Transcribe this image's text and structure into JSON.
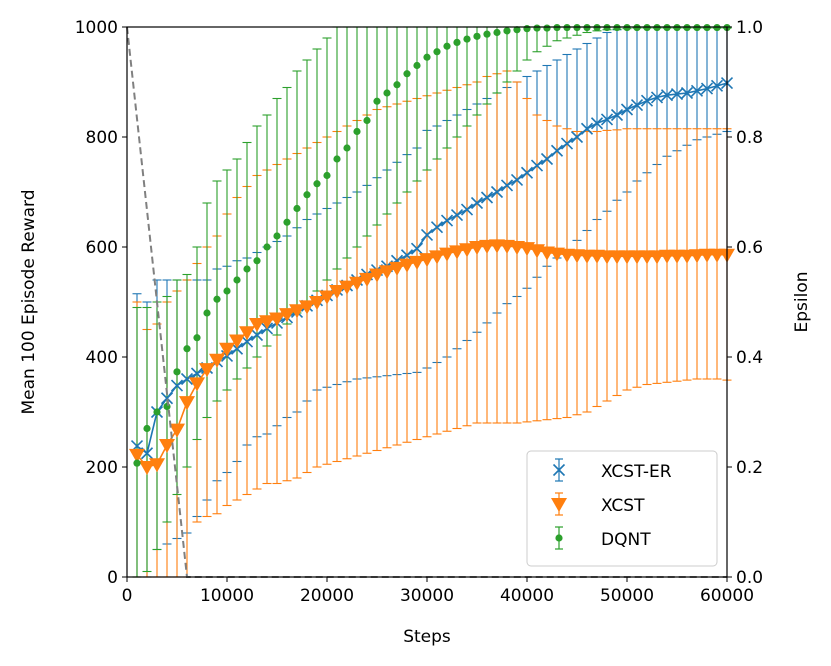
{
  "chart_data": {
    "type": "line",
    "title": "",
    "xlabel": "Steps",
    "ylabel": "Mean 100 Episode Reward",
    "y2label": "Epsilon",
    "xlim": [
      0,
      60000
    ],
    "ylim": [
      0,
      1000
    ],
    "y2lim": [
      0.0,
      1.0
    ],
    "xticks": [
      "0",
      "10000",
      "20000",
      "30000",
      "40000",
      "50000",
      "60000"
    ],
    "yticks": [
      "0",
      "200",
      "400",
      "600",
      "800",
      "1000"
    ],
    "y2ticks": [
      "0.0",
      "0.2",
      "0.4",
      "0.6",
      "0.8",
      "1.0"
    ],
    "legend_position": "bottom-right",
    "x": [
      1000,
      2000,
      3000,
      4000,
      5000,
      6000,
      7000,
      8000,
      9000,
      10000,
      11000,
      12000,
      13000,
      14000,
      15000,
      16000,
      17000,
      18000,
      19000,
      20000,
      21000,
      22000,
      23000,
      24000,
      25000,
      26000,
      27000,
      28000,
      29000,
      30000,
      31000,
      32000,
      33000,
      34000,
      35000,
      36000,
      37000,
      38000,
      39000,
      40000,
      41000,
      42000,
      43000,
      44000,
      45000,
      46000,
      47000,
      48000,
      49000,
      50000,
      51000,
      52000,
      53000,
      54000,
      55000,
      56000,
      57000,
      58000,
      59000,
      60000
    ],
    "series": [
      {
        "name": "XCST-ER",
        "color": "#1f77b4",
        "marker": "x",
        "values": [
          238,
          225,
          300,
          325,
          348,
          360,
          370,
          380,
          392,
          402,
          415,
          428,
          440,
          452,
          462,
          472,
          482,
          493,
          503,
          512,
          522,
          530,
          540,
          550,
          558,
          565,
          575,
          585,
          597,
          622,
          636,
          648,
          658,
          668,
          680,
          690,
          700,
          712,
          722,
          735,
          748,
          760,
          775,
          788,
          800,
          815,
          825,
          832,
          840,
          850,
          858,
          866,
          872,
          876,
          878,
          880,
          884,
          888,
          893,
          898
        ],
        "err_low": [
          0,
          0,
          50,
          60,
          70,
          80,
          110,
          140,
          175,
          190,
          210,
          240,
          255,
          260,
          275,
          290,
          300,
          320,
          340,
          345,
          350,
          355,
          360,
          362,
          364,
          366,
          368,
          370,
          372,
          380,
          390,
          400,
          415,
          430,
          445,
          462,
          480,
          497,
          510,
          525,
          545,
          565,
          580,
          595,
          612,
          630,
          650,
          665,
          685,
          700,
          720,
          735,
          750,
          765,
          775,
          785,
          795,
          800,
          805,
          810
        ],
        "err_high": [
          515,
          500,
          540,
          540,
          540,
          540,
          540,
          540,
          560,
          565,
          575,
          580,
          590,
          600,
          610,
          620,
          635,
          650,
          660,
          670,
          680,
          690,
          700,
          712,
          726,
          740,
          754,
          768,
          780,
          812,
          820,
          830,
          840,
          850,
          860,
          870,
          880,
          890,
          900,
          910,
          920,
          930,
          940,
          950,
          960,
          970,
          980,
          990,
          995,
          1000,
          1000,
          1000,
          1000,
          1000,
          1000,
          1000,
          1000,
          1000,
          1000,
          1000
        ]
      },
      {
        "name": "XCST",
        "color": "#ff7f0e",
        "marker": "triangle-down",
        "values": [
          222,
          200,
          205,
          240,
          268,
          318,
          352,
          378,
          395,
          415,
          430,
          445,
          460,
          465,
          470,
          478,
          485,
          492,
          500,
          510,
          520,
          528,
          535,
          542,
          550,
          556,
          562,
          568,
          573,
          578,
          583,
          588,
          592,
          596,
          600,
          602,
          603,
          602,
          600,
          598,
          594,
          590,
          588,
          586,
          585,
          584,
          584,
          583,
          583,
          583,
          583,
          583,
          583,
          584,
          584,
          584,
          585,
          586,
          586,
          586
        ],
        "err_low": [
          0,
          0,
          0,
          0,
          0,
          0,
          100,
          110,
          115,
          130,
          140,
          150,
          160,
          170,
          170,
          175,
          180,
          190,
          200,
          205,
          210,
          215,
          220,
          225,
          230,
          235,
          240,
          245,
          250,
          255,
          260,
          265,
          270,
          275,
          280,
          280,
          280,
          280,
          280,
          282,
          284,
          286,
          288,
          290,
          295,
          300,
          310,
          320,
          330,
          340,
          345,
          350,
          352,
          354,
          356,
          358,
          360,
          360,
          360,
          358
        ],
        "err_high": [
          500,
          450,
          460,
          500,
          520,
          540,
          570,
          600,
          620,
          660,
          690,
          710,
          730,
          740,
          750,
          760,
          770,
          780,
          790,
          800,
          810,
          820,
          830,
          840,
          850,
          855,
          860,
          865,
          870,
          875,
          880,
          885,
          890,
          895,
          900,
          910,
          915,
          920,
          900,
          870,
          840,
          830,
          820,
          815,
          810,
          810,
          810,
          812,
          813,
          815,
          815,
          815,
          815,
          815,
          815,
          815,
          815,
          815,
          815,
          815
        ]
      },
      {
        "name": "DQNT",
        "color": "#2ca02c",
        "marker": "circle",
        "values": [
          207,
          270,
          300,
          310,
          373,
          415,
          435,
          480,
          505,
          520,
          540,
          560,
          575,
          600,
          620,
          645,
          670,
          695,
          715,
          730,
          760,
          780,
          810,
          830,
          865,
          880,
          895,
          915,
          930,
          945,
          955,
          965,
          972,
          978,
          983,
          987,
          990,
          993,
          995,
          997,
          998,
          998,
          999,
          999,
          999,
          999,
          999,
          999,
          999,
          999,
          999,
          999,
          999,
          999,
          999,
          999,
          999,
          999,
          999,
          999
        ],
        "err_low": [
          0,
          10,
          50,
          100,
          150,
          200,
          250,
          290,
          320,
          340,
          360,
          380,
          400,
          420,
          440,
          460,
          480,
          500,
          520,
          540,
          560,
          580,
          600,
          620,
          640,
          660,
          680,
          700,
          720,
          740,
          760,
          780,
          800,
          820,
          840,
          860,
          880,
          900,
          920,
          940,
          955,
          965,
          975,
          980,
          985,
          990,
          993,
          995,
          996,
          997,
          998,
          998,
          998,
          998,
          998,
          998,
          998,
          998,
          998,
          998
        ],
        "err_high": [
          490,
          490,
          500,
          510,
          540,
          550,
          600,
          680,
          720,
          740,
          760,
          790,
          820,
          840,
          870,
          890,
          920,
          940,
          960,
          980,
          1000,
          1000,
          1000,
          1000,
          1000,
          1000,
          1000,
          1000,
          1000,
          1000,
          1000,
          1000,
          1000,
          1000,
          1000,
          1000,
          1000,
          1000,
          1000,
          1000,
          1000,
          1000,
          1000,
          1000,
          1000,
          1000,
          1000,
          1000,
          1000,
          1000,
          1000,
          1000,
          1000,
          1000,
          1000,
          1000,
          1000,
          1000,
          1000,
          1000
        ]
      }
    ],
    "epsilon": {
      "name": "Epsilon",
      "color": "#808080",
      "style": "dashed",
      "points": [
        [
          0,
          1.0
        ],
        [
          6000,
          0.0
        ],
        [
          60000,
          0.0
        ]
      ]
    }
  }
}
